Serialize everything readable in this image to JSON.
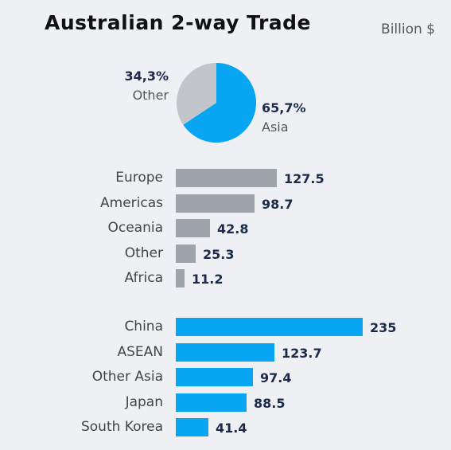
{
  "header": {
    "title": "Australian 2-way Trade",
    "unit": "Billion $"
  },
  "colors": {
    "grey": "#9da4ac",
    "blue": "#07a5f2",
    "pie_grey": "#c2c6cb"
  },
  "chart_data": [
    {
      "type": "pie",
      "slices": [
        {
          "name": "Asia",
          "pct_label": "65,7%",
          "value": 65.7,
          "color": "#07a5f2"
        },
        {
          "name": "Other",
          "pct_label": "34,3%",
          "value": 34.3,
          "color": "#c2c6cb"
        }
      ]
    },
    {
      "type": "bar",
      "orientation": "horizontal",
      "categories": [
        "Europe",
        "Americas",
        "Oceania",
        "Other",
        "Africa"
      ],
      "values": [
        127.5,
        98.7,
        42.8,
        25.3,
        11.2
      ],
      "value_labels": [
        "127.5",
        "98.7",
        "42.8",
        "25.3",
        "11.2"
      ],
      "color": "#9da4ac"
    },
    {
      "type": "bar",
      "orientation": "horizontal",
      "categories": [
        "China",
        "ASEAN",
        "Other Asia",
        "Japan",
        "South Korea"
      ],
      "values": [
        235,
        123.7,
        97.4,
        88.5,
        41.4
      ],
      "value_labels": [
        "235",
        "123.7",
        "97.4",
        "88.5",
        "41.4"
      ],
      "color": "#07a5f2"
    }
  ]
}
